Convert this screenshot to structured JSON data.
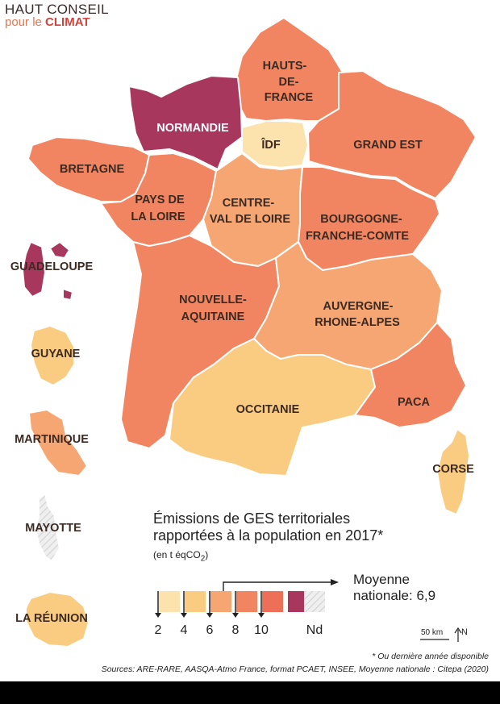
{
  "logo": {
    "line1": "HAUT CONSEIL",
    "line2_prefix": "pour le",
    "line2_strong": "CLIMAT"
  },
  "colors": {
    "c2": "#fce3ae",
    "c4": "#f9cc82",
    "c6": "#f6a672",
    "c8": "#f28561",
    "c10": "#ee6f58",
    "c12": "#a8375d",
    "nd": "#e6e6e6"
  },
  "regions": {
    "hauts_de_france": {
      "l1": "HAUTS-",
      "l2": "DE-",
      "l3": "FRANCE",
      "class": "8-10"
    },
    "normandie": {
      "name": "NORMANDIE",
      "class": ">10"
    },
    "idf": {
      "name": "ÎDF",
      "class": "2-4"
    },
    "grand_est": {
      "name": "GRAND EST",
      "class": "8-10"
    },
    "bretagne": {
      "name": "BRETAGNE",
      "class": "8-10"
    },
    "pays_de_la_loire": {
      "l1": "PAYS DE",
      "l2": "LA LOIRE",
      "class": "8-10"
    },
    "centre_val_de_loire": {
      "l1": "CENTRE-",
      "l2": "VAL DE LOIRE",
      "class": "6-8"
    },
    "bourgogne_franche_comte": {
      "l1": "BOURGOGNE-",
      "l2": "FRANCHE-COMTE",
      "class": "8-10"
    },
    "nouvelle_aquitaine": {
      "l1": "NOUVELLE-",
      "l2": "AQUITAINE",
      "class": "8-10"
    },
    "auvergne_rhone_alpes": {
      "l1": "AUVERGNE-",
      "l2": "RHONE-ALPES",
      "class": "6-8"
    },
    "occitanie": {
      "name": "OCCITANIE",
      "class": "4-6"
    },
    "paca": {
      "name": "PACA",
      "class": "8-10"
    },
    "corse": {
      "name": "CORSE",
      "class": "4-6"
    },
    "guadeloupe": {
      "name": "GUADELOUPE",
      "class": ">10"
    },
    "guyane": {
      "name": "GUYANE",
      "class": "4-6"
    },
    "martinique": {
      "name": "MARTINIQUE",
      "class": "6-8"
    },
    "mayotte": {
      "name": "MAYOTTE",
      "class": "Nd"
    },
    "la_reunion": {
      "name": "LA RÉUNION",
      "class": "4-6"
    }
  },
  "legend": {
    "title1": "Émissions de GES territoriales",
    "title2": "rapportées à la population en 2017*",
    "unit_prefix": "(en t éqCO",
    "unit_sub": "2",
    "unit_suffix": ")",
    "ticks": [
      "2",
      "4",
      "6",
      "8",
      "10"
    ],
    "nd_label": "Nd",
    "average_label1": "Moyenne",
    "average_label2": "nationale: 6,9",
    "average_value": 6.9
  },
  "scale_bar": {
    "label": "50 km"
  },
  "north": {
    "label": "N"
  },
  "footnote": "* Ou dernière année disponible",
  "sources": "Sources: ARE-RARE, AASQA-Atmo France, format PCAET, INSEE, Moyenne nationale : Citepa (2020)"
}
